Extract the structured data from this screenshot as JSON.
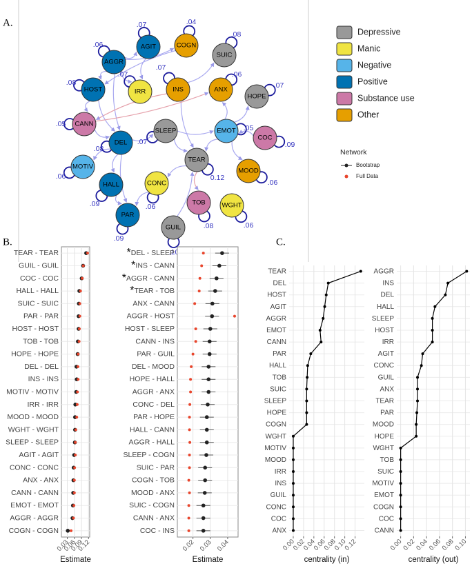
{
  "panels": [
    "A.",
    "B.",
    "C."
  ],
  "network": {
    "groups": [
      {
        "name": "Depressive",
        "color": "#999999"
      },
      {
        "name": "Manic",
        "color": "#f0e442"
      },
      {
        "name": "Negative",
        "color": "#56b4e9"
      },
      {
        "name": "Positive",
        "color": "#0072b2"
      },
      {
        "name": "Substance use",
        "color": "#cc79a7"
      },
      {
        "name": "Other",
        "color": "#e69f00"
      }
    ],
    "nodes": [
      {
        "label": "AGIT",
        "group": "Positive",
        "loop": ".07"
      },
      {
        "label": "COGN",
        "group": "Other",
        "loop": ".04"
      },
      {
        "label": "SUIC",
        "group": "Depressive",
        "loop": ".08"
      },
      {
        "label": "AGGR",
        "group": "Positive",
        "loop": ".06"
      },
      {
        "label": "IRR",
        "group": "Manic",
        "loop": ".07"
      },
      {
        "label": "INS",
        "group": "Other",
        "loop": ".07"
      },
      {
        "label": "ANX",
        "group": "Other",
        "loop": ".06"
      },
      {
        "label": "HOPE",
        "group": "Depressive",
        "loop": ".07"
      },
      {
        "label": "HOST",
        "group": "Positive",
        "loop": ".08"
      },
      {
        "label": "CANN",
        "group": "Substance use",
        "loop": ".05"
      },
      {
        "label": "DEL",
        "group": "Positive",
        "loop": ".08"
      },
      {
        "label": "SLEEP",
        "group": "Depressive",
        "loop": ".07"
      },
      {
        "label": "EMOT",
        "group": "Negative",
        "loop": ".05"
      },
      {
        "label": "COC",
        "group": "Substance use",
        "loop": ".09"
      },
      {
        "label": "MOTIV",
        "group": "Negative",
        "loop": ".06"
      },
      {
        "label": "TEAR",
        "group": "Depressive",
        "loop": "0.12"
      },
      {
        "label": "CONC",
        "group": "Manic",
        "loop": ".06"
      },
      {
        "label": "MOOD",
        "group": "Other",
        "loop": ".06"
      },
      {
        "label": "HALL",
        "group": "Positive",
        "loop": ".09"
      },
      {
        "label": "TOB",
        "group": "Substance use",
        "loop": ".08"
      },
      {
        "label": "WGHT",
        "group": "Manic",
        "loop": ".06"
      },
      {
        "label": "PAR",
        "group": "Positive",
        "loop": ".09"
      },
      {
        "label": "GUIL",
        "group": "Depressive",
        "loop": ".10"
      }
    ]
  },
  "chart_data": [
    {
      "type": "dot",
      "xlabel": "Estimate",
      "legend_title": "Network",
      "categories": [
        "TEAR - TEAR",
        "GUIL - GUIL",
        "COC - COC",
        "HALL - HALL",
        "SUIC - SUIC",
        "PAR - PAR",
        "HOST - HOST",
        "TOB - TOB",
        "HOPE - HOPE",
        "DEL - DEL",
        "INS - INS",
        "MOTIV - MOTIV",
        "IRR - IRR",
        "MOOD - MOOD",
        "WGHT - WGHT",
        "SLEEP - SLEEP",
        "AGIT - AGIT",
        "CONC - CONC",
        "ANX - ANX",
        "CANN - CANN",
        "EMOT - EMOT",
        "AGGR - AGGR",
        "COGN - COGN"
      ],
      "series": [
        {
          "name": "Bootstrap",
          "color": "#222222",
          "values": [
            0.11,
            0.097,
            0.091,
            0.081,
            0.079,
            0.078,
            0.078,
            0.075,
            0.074,
            0.069,
            0.07,
            0.068,
            0.064,
            0.063,
            0.063,
            0.062,
            0.059,
            0.057,
            0.056,
            0.055,
            0.054,
            0.052,
            0.032
          ],
          "errors": [
            0.006,
            0.006,
            0.005,
            0.005,
            0.005,
            0.005,
            0.005,
            0.005,
            0.005,
            0.005,
            0.005,
            0.005,
            0.005,
            0.005,
            0.005,
            0.005,
            0.005,
            0.005,
            0.005,
            0.005,
            0.005,
            0.005,
            0.005
          ]
        },
        {
          "name": "Full Data",
          "color": "#e8452c",
          "values": [
            0.116,
            0.098,
            0.093,
            0.086,
            0.083,
            0.083,
            0.081,
            0.08,
            0.076,
            0.075,
            0.076,
            0.073,
            0.072,
            0.07,
            0.066,
            0.064,
            0.064,
            0.061,
            0.06,
            0.06,
            0.058,
            0.056,
            0.046
          ]
        }
      ],
      "xlim": [
        0.005,
        0.125
      ],
      "xticks": [
        0.03,
        0.06,
        0.09,
        0.12
      ],
      "grid": true
    },
    {
      "type": "dot",
      "xlabel": "Estimate",
      "categories": [
        "DEL - SLEEP",
        "INS - CANN",
        "AGGR - CANN",
        "TEAR - TOB",
        "ANX - CANN",
        "AGGR - HOST",
        "HOST - SLEEP",
        "CANN - INS",
        "PAR - GUIL",
        "DEL - MOOD",
        "HOPE - HALL",
        "AGGR - ANX",
        "CONC - DEL",
        "PAR - HOPE",
        "HALL - CANN",
        "AGGR - HALL",
        "SLEEP - COGN",
        "SUIC - PAR",
        "COGN - TOB",
        "MOOD - ANX",
        "SUIC - COGN",
        "CANN - ANX",
        "COC - INS"
      ],
      "annotations": [
        "*",
        "*",
        "*",
        "*",
        null,
        null,
        null,
        null,
        null,
        null,
        null,
        null,
        null,
        null,
        null,
        null,
        null,
        null,
        null,
        null,
        null,
        null,
        null
      ],
      "series": [
        {
          "name": "Bootstrap",
          "color": "#222222",
          "values": [
            0.0368,
            0.0352,
            0.0336,
            0.0328,
            0.0312,
            0.031,
            0.03,
            0.0296,
            0.0296,
            0.029,
            0.029,
            0.029,
            0.0285,
            0.028,
            0.028,
            0.028,
            0.0277,
            0.027,
            0.027,
            0.0268,
            0.026,
            0.026,
            0.026
          ],
          "errors": [
            0.004,
            0.004,
            0.004,
            0.004,
            0.004,
            0.004,
            0.004,
            0.004,
            0.004,
            0.004,
            0.004,
            0.004,
            0.004,
            0.004,
            0.004,
            0.004,
            0.004,
            0.004,
            0.004,
            0.004,
            0.004,
            0.004,
            0.004
          ]
        },
        {
          "name": "Full Data",
          "color": "#e8452c",
          "values": [
            0.026,
            0.025,
            0.024,
            0.0236,
            0.021,
            0.044,
            0.0216,
            0.0216,
            0.02,
            0.019,
            0.0186,
            0.0186,
            0.0182,
            0.018,
            0.018,
            0.0182,
            0.018,
            0.018,
            0.0176,
            0.018,
            0.0176,
            0.0176,
            0.0176
          ]
        }
      ],
      "xlim": [
        0.011,
        0.046
      ],
      "xticks": [
        0.02,
        0.03,
        0.04
      ],
      "grid": true
    },
    {
      "type": "line",
      "xlabel": "centrality (in)",
      "color": "#000000",
      "categories": [
        "TEAR",
        "DEL",
        "HOST",
        "AGIT",
        "AGGR",
        "EMOT",
        "CANN",
        "PAR",
        "HALL",
        "TOB",
        "SUIC",
        "SLEEP",
        "HOPE",
        "COGN",
        "WGHT",
        "MOTIV",
        "MOOD",
        "IRR",
        "INS",
        "GUIL",
        "CONC",
        "COC",
        "ANX"
      ],
      "values": [
        0.131,
        0.068,
        0.064,
        0.061,
        0.058,
        0.052,
        0.054,
        0.034,
        0.028,
        0.027,
        0.026,
        0.026,
        0.026,
        0.026,
        0,
        0,
        0,
        0,
        0,
        0,
        0,
        0,
        0
      ],
      "xlim": [
        -0.008,
        0.138
      ],
      "xticks": [
        {
          "value": 0,
          "label": "0.00"
        },
        0.02,
        0.04,
        0.06,
        0.08,
        {
          "value": 0.1,
          "label": "0.10"
        },
        0.12
      ],
      "grid": true
    },
    {
      "type": "line",
      "xlabel": "centrality (out)",
      "color": "#000000",
      "categories": [
        "AGGR",
        "INS",
        "DEL",
        "HALL",
        "SLEEP",
        "HOST",
        "IRR",
        "AGIT",
        "CONC",
        "GUIL",
        "ANX",
        "TEAR",
        "PAR",
        "MOOD",
        "HOPE",
        "WGHT",
        "TOB",
        "SUIC",
        "MOTIV",
        "EMOT",
        "COGN",
        "COC",
        "CANN"
      ],
      "values": [
        0.102,
        0.073,
        0.069,
        0.053,
        0.049,
        0.049,
        0.049,
        0.034,
        0.032,
        0.026,
        0.026,
        0.026,
        0.025,
        0.024,
        0.024,
        0,
        0,
        0,
        0,
        0,
        0,
        0,
        0
      ],
      "xlim": [
        -0.006,
        0.107
      ],
      "xticks": [
        {
          "value": 0,
          "label": "0.00"
        },
        0.02,
        0.04,
        0.06,
        0.08,
        {
          "value": 0.1,
          "label": "0.10"
        }
      ],
      "grid": true
    }
  ]
}
